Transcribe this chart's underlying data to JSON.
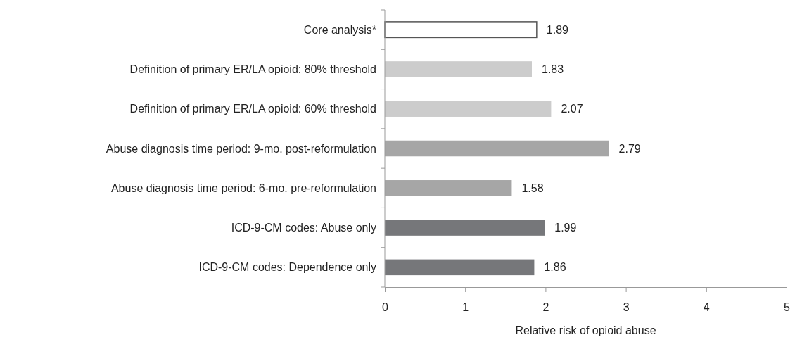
{
  "chart_data": {
    "type": "bar",
    "orientation": "horizontal",
    "xlabel": "Relative risk of opioid abuse",
    "categories": [
      "Core analysis*",
      "Definition of primary ER/LA opioid: 80% threshold",
      "Definition of primary ER/LA opioid: 60% threshold",
      "Abuse diagnosis time period: 9-mo. post-reformulation",
      "Abuse diagnosis time period: 6-mo. pre-reformulation",
      "ICD-9-CM codes: Abuse only",
      "ICD-9-CM codes: Dependence only"
    ],
    "values": [
      1.89,
      1.83,
      2.07,
      2.79,
      1.58,
      1.99,
      1.86
    ],
    "colors": [
      "#ffffff",
      "#cccccc",
      "#cccccc",
      "#a6a6a6",
      "#a6a6a6",
      "#76777a",
      "#76777a"
    ],
    "xlim": [
      0,
      5
    ],
    "xticks": [
      0,
      1,
      2,
      3,
      4,
      5
    ],
    "data_labels": true,
    "grid": false
  }
}
